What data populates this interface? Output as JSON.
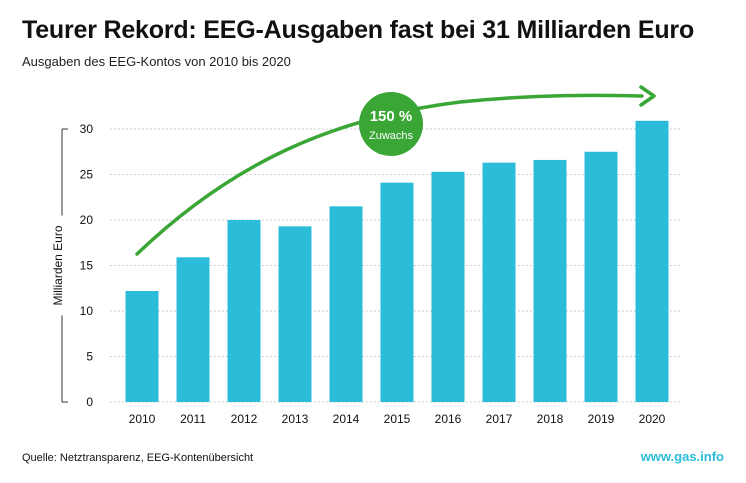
{
  "header": {
    "title": "Teurer Rekord: EEG-Ausgaben fast bei 31 Milliarden Euro",
    "subtitle": "Ausgaben des EEG-Kontos von 2010 bis 2020"
  },
  "footer": {
    "source": "Quelle: Netztransparenz, EEG-Kontenübersicht",
    "website": "www.gas.info"
  },
  "colors": {
    "bar": "#2bbcd9",
    "arrow": "#3aa635",
    "badge": "#3aa635",
    "grid": "#bdbdbd",
    "website": "#2bbcd9"
  },
  "badge": {
    "percent": "150 %",
    "label": "Zuwachs"
  },
  "chart_data": {
    "type": "bar",
    "title": "Teurer Rekord: EEG-Ausgaben fast bei 31 Milliarden Euro",
    "subtitle": "Ausgaben des EEG-Kontos von 2010 bis 2020",
    "xlabel": "",
    "ylabel": "Milliarden Euro",
    "categories": [
      "2010",
      "2011",
      "2012",
      "2013",
      "2014",
      "2015",
      "2016",
      "2017",
      "2018",
      "2019",
      "2020"
    ],
    "values": [
      12.2,
      15.9,
      20.0,
      19.3,
      21.5,
      24.1,
      25.3,
      26.3,
      26.6,
      27.5,
      30.9
    ],
    "ylim": [
      0,
      30
    ],
    "yticks": [
      0,
      5,
      10,
      15,
      20,
      25,
      30
    ],
    "grid": true,
    "legend": "none",
    "annotation": "150 % Zuwachs"
  }
}
